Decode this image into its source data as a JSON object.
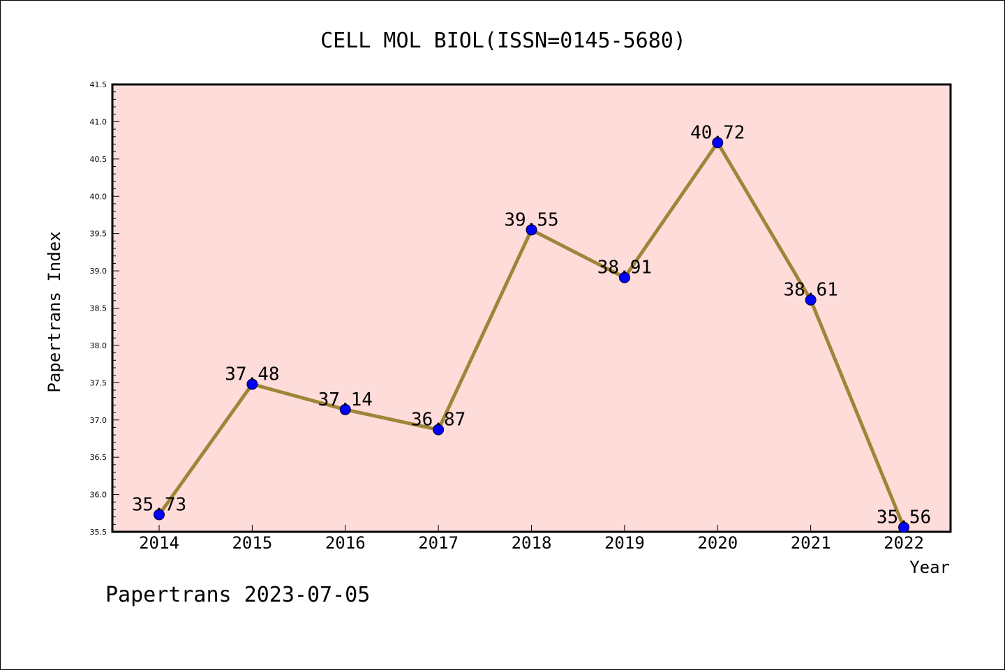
{
  "chart_data": {
    "type": "line",
    "title": "CELL MOL BIOL(ISSN=0145-5680)",
    "xlabel": "Year",
    "ylabel": "Papertrans Index",
    "categories": [
      "2014",
      "2015",
      "2016",
      "2017",
      "2018",
      "2019",
      "2020",
      "2021",
      "2022"
    ],
    "series": [
      {
        "values": [
          35.73,
          37.48,
          37.14,
          36.87,
          39.55,
          38.91,
          40.72,
          38.61,
          35.56
        ]
      }
    ],
    "data_labels": [
      "35.73",
      "37.48",
      "37.14",
      "36.87",
      "39.55",
      "38.91",
      "40.72",
      "38.61",
      "35.56"
    ],
    "ylim": [
      35.5,
      41.5
    ],
    "yticks": [
      "35.5",
      "36.0",
      "36.5",
      "37.0",
      "37.5",
      "38.0",
      "38.5",
      "39.0",
      "39.5",
      "40.0",
      "40.5",
      "41.0",
      "41.5"
    ],
    "legend": "none",
    "grid": false,
    "colors": {
      "plot_background": "#fddcda",
      "line": "#a08539",
      "marker": "#0000ff"
    }
  },
  "footer": "Papertrans 2023-07-05"
}
